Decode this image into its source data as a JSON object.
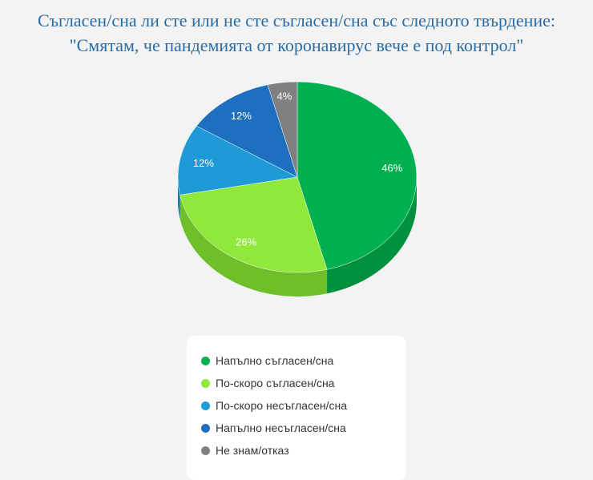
{
  "chart_data": {
    "type": "pie",
    "title_line1": "Съгласен/сна ли сте или не сте съгласен/сна със следното твърдение:",
    "title_line2": "\"Смятам, че пандемията от коронавирус вече е под контрол\"",
    "categories": [
      "Напълно съгласен/сна",
      "По-скоро съгласен/сна",
      "По-скоро несъгласен/сна",
      "Напълно несъгласен/сна",
      "Не знам/отказ"
    ],
    "values": [
      46,
      26,
      12,
      12,
      4
    ],
    "labels": [
      "46%",
      "26%",
      "12%",
      "12%",
      "4%"
    ],
    "colors": [
      "#00b050",
      "#8fe83a",
      "#1e9bd6",
      "#1f6fc0",
      "#808080"
    ],
    "side_colors": [
      "#009140",
      "#6fbf2a",
      "#167aab",
      "#17579a",
      "#666666"
    ],
    "legend_placement": "bottom"
  }
}
